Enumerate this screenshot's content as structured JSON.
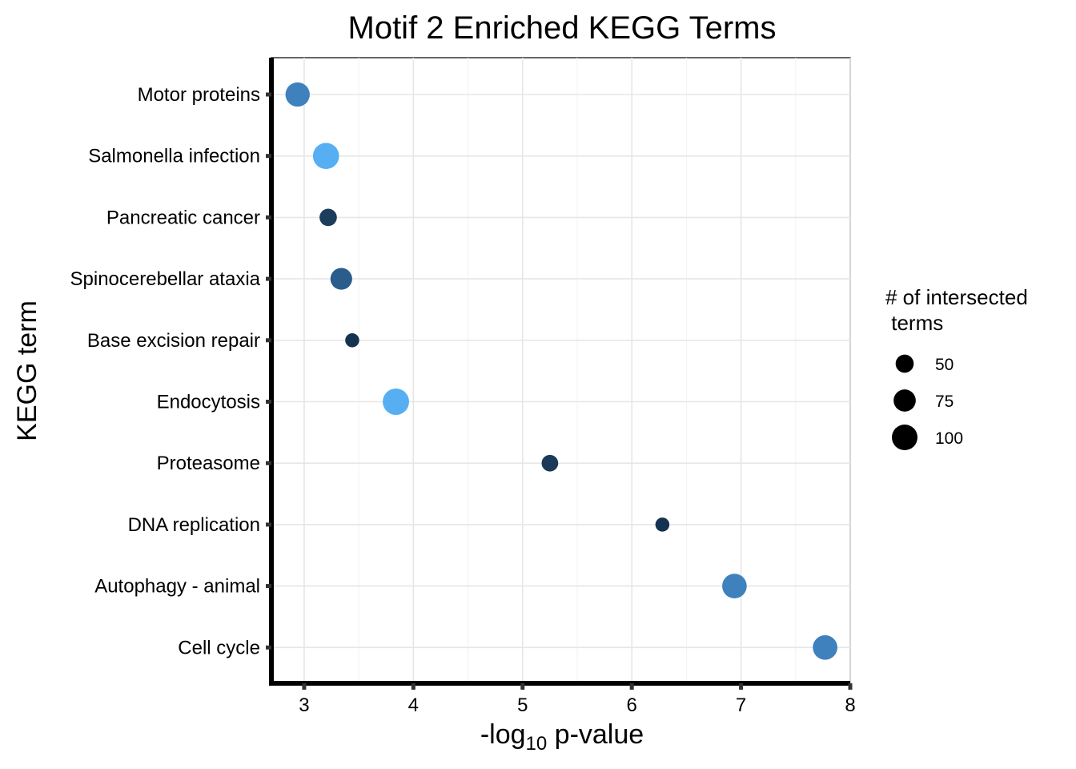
{
  "chart_data": {
    "type": "scatter",
    "title": "Motif 2 Enriched KEGG Terms",
    "xlabel_prefix": "-log",
    "xlabel_sub": "10",
    "xlabel_suffix": " p-value",
    "ylabel": "KEGG term",
    "xlim": [
      2.7,
      8
    ],
    "x_ticks": [
      3,
      4,
      5,
      6,
      7,
      8
    ],
    "categories": [
      "Motor proteins",
      "Salmonella infection",
      "Pancreatic cancer",
      "Spinocerebellar ataxia",
      "Base excision repair",
      "Endocytosis",
      "Proteasome",
      "DNA replication",
      "Autophagy - animal",
      "Cell cycle"
    ],
    "points": [
      {
        "term": "Motor proteins",
        "x": 2.94,
        "count": 90,
        "color": "#3f81bd"
      },
      {
        "term": "Salmonella infection",
        "x": 3.2,
        "count": 104,
        "color": "#56aff2"
      },
      {
        "term": "Pancreatic cancer",
        "x": 3.22,
        "count": 46,
        "color": "#1d3d5c"
      },
      {
        "term": "Spinocerebellar ataxia",
        "x": 3.34,
        "count": 72,
        "color": "#2a5d8c"
      },
      {
        "term": "Base excision repair",
        "x": 3.44,
        "count": 30,
        "color": "#153250"
      },
      {
        "term": "Endocytosis",
        "x": 3.84,
        "count": 106,
        "color": "#56aff2"
      },
      {
        "term": "Proteasome",
        "x": 5.25,
        "count": 42,
        "color": "#1a3a57"
      },
      {
        "term": "DNA replication",
        "x": 6.28,
        "count": 30,
        "color": "#153250"
      },
      {
        "term": "Autophagy - animal",
        "x": 6.94,
        "count": 92,
        "color": "#3f81bd"
      },
      {
        "term": "Cell cycle",
        "x": 7.77,
        "count": 92,
        "color": "#3f81bd"
      }
    ],
    "legend": {
      "title_line1": "# of intersected",
      "title_line2": " terms",
      "entries": [
        {
          "label": "50",
          "count": 50
        },
        {
          "label": "75",
          "count": 75
        },
        {
          "label": "100",
          "count": 100
        }
      ],
      "placement": "right"
    },
    "grid": true
  }
}
